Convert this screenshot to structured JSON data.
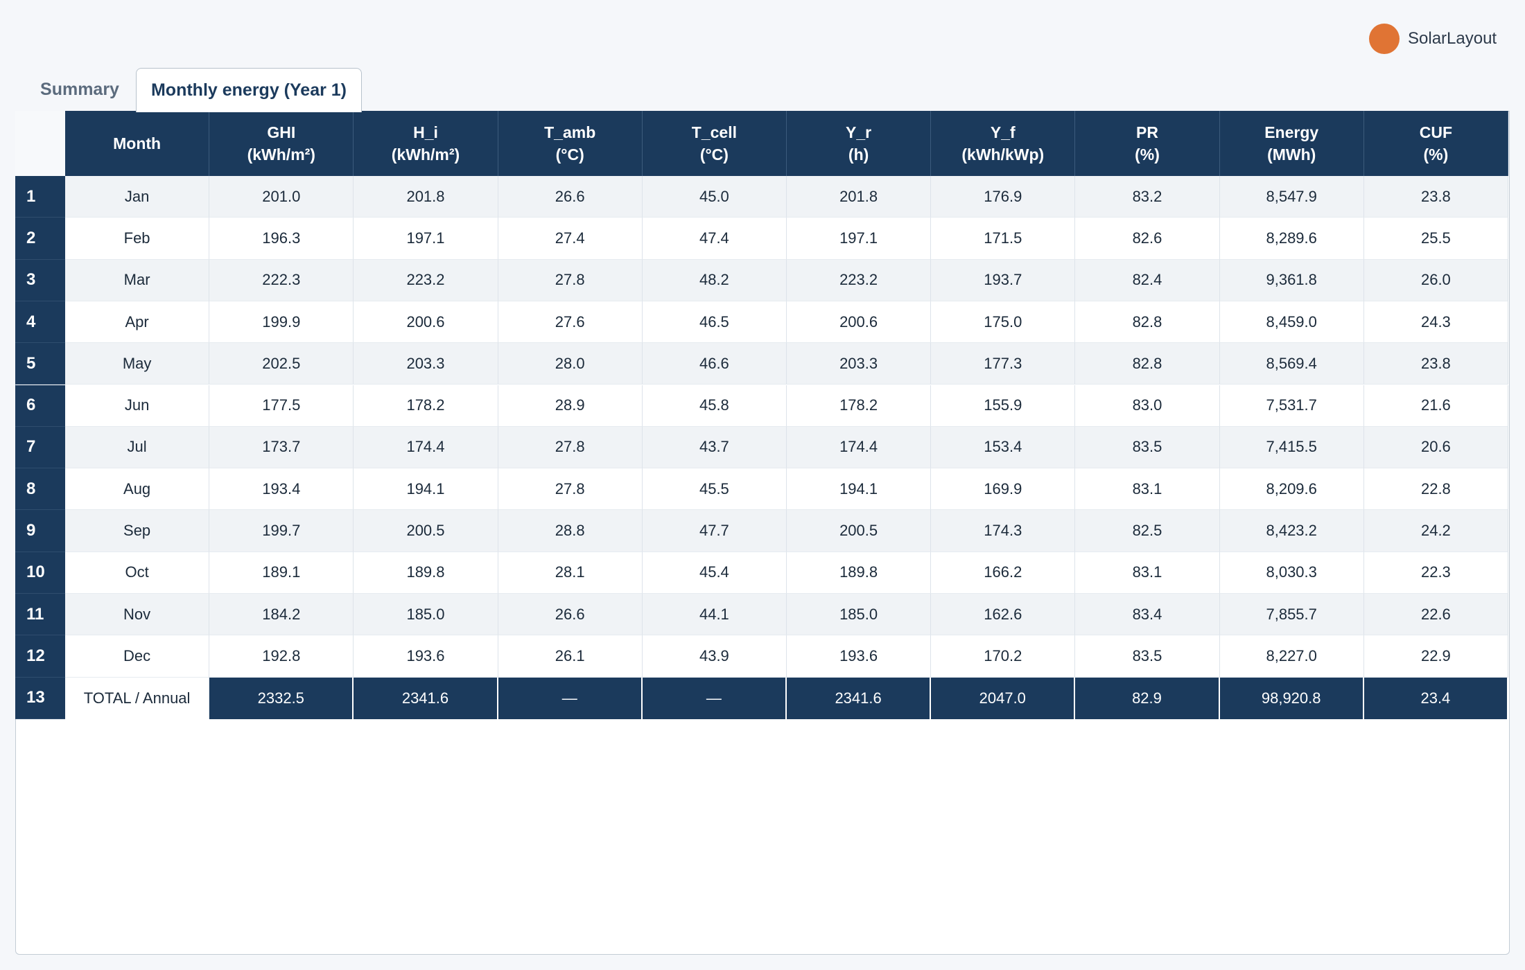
{
  "brand": "SolarLayout",
  "tabs": [
    "Summary",
    "Monthly energy (Year 1)"
  ],
  "table": {
    "headers": [
      {
        "name": "Month"
      },
      {
        "name": "GHI",
        "unit": "(kWh/m²)"
      },
      {
        "name": "H_i",
        "unit": "(kWh/m²)"
      },
      {
        "name": "T_amb",
        "unit": "(°C)"
      },
      {
        "name": "T_cell",
        "unit": "(°C)"
      },
      {
        "name": "Y_r",
        "unit": "(h)"
      },
      {
        "name": "Y_f",
        "unit": "(kWh/kWp)"
      },
      {
        "name": "PR",
        "unit": "(%)"
      },
      {
        "name": "Energy",
        "unit": "(MWh)"
      },
      {
        "name": "CUF",
        "unit": "(%)"
      }
    ],
    "rows": [
      {
        "index": "1",
        "cells": [
          "Jan",
          "201.0",
          "201.8",
          "26.6",
          "45.0",
          "201.8",
          "176.9",
          "83.2",
          "8,547.9",
          "23.8"
        ]
      },
      {
        "index": "2",
        "cells": [
          "Feb",
          "196.3",
          "197.1",
          "27.4",
          "47.4",
          "197.1",
          "171.5",
          "82.6",
          "8,289.6",
          "25.5"
        ]
      },
      {
        "index": "3",
        "cells": [
          "Mar",
          "222.3",
          "223.2",
          "27.8",
          "48.2",
          "223.2",
          "193.7",
          "82.4",
          "9,361.8",
          "26.0"
        ]
      },
      {
        "index": "4",
        "cells": [
          "Apr",
          "199.9",
          "200.6",
          "27.6",
          "46.5",
          "200.6",
          "175.0",
          "82.8",
          "8,459.0",
          "24.3"
        ]
      },
      {
        "index": "5",
        "cells": [
          "May",
          "202.5",
          "203.3",
          "28.0",
          "46.6",
          "203.3",
          "177.3",
          "82.8",
          "8,569.4",
          "23.8"
        ]
      },
      {
        "index": "6",
        "cells": [
          "Jun",
          "177.5",
          "178.2",
          "28.9",
          "45.8",
          "178.2",
          "155.9",
          "83.0",
          "7,531.7",
          "21.6"
        ]
      },
      {
        "index": "7",
        "cells": [
          "Jul",
          "173.7",
          "174.4",
          "27.8",
          "43.7",
          "174.4",
          "153.4",
          "83.5",
          "7,415.5",
          "20.6"
        ]
      },
      {
        "index": "8",
        "cells": [
          "Aug",
          "193.4",
          "194.1",
          "27.8",
          "45.5",
          "194.1",
          "169.9",
          "83.1",
          "8,209.6",
          "22.8"
        ]
      },
      {
        "index": "9",
        "cells": [
          "Sep",
          "199.7",
          "200.5",
          "28.8",
          "47.7",
          "200.5",
          "174.3",
          "82.5",
          "8,423.2",
          "24.2"
        ]
      },
      {
        "index": "10",
        "cells": [
          "Oct",
          "189.1",
          "189.8",
          "28.1",
          "45.4",
          "189.8",
          "166.2",
          "83.1",
          "8,030.3",
          "22.3"
        ]
      },
      {
        "index": "11",
        "cells": [
          "Nov",
          "184.2",
          "185.0",
          "26.6",
          "44.1",
          "185.0",
          "162.6",
          "83.4",
          "7,855.7",
          "22.6"
        ]
      },
      {
        "index": "12",
        "cells": [
          "Dec",
          "192.8",
          "193.6",
          "26.1",
          "43.9",
          "193.6",
          "170.2",
          "83.5",
          "8,227.0",
          "22.9"
        ]
      },
      {
        "index": "13",
        "cells": [
          "TOTAL / Annual",
          "2332.5",
          "2341.6",
          "—",
          "—",
          "2341.6",
          "2047.0",
          "82.9",
          "98,920.8",
          "23.4"
        ]
      }
    ]
  }
}
